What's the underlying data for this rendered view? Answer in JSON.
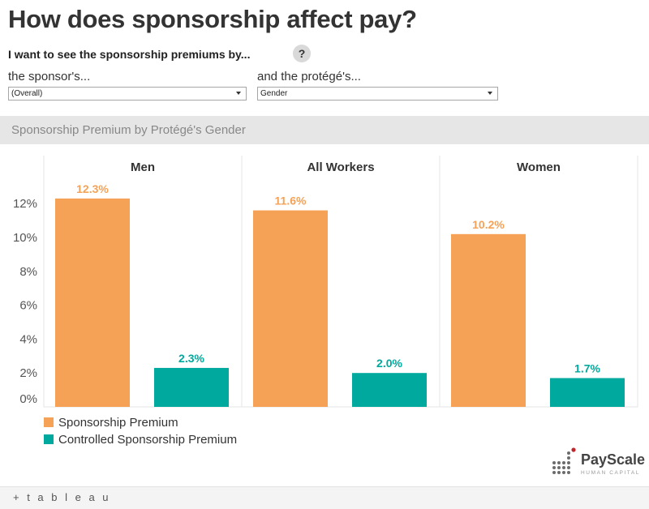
{
  "header": {
    "title": "How does sponsorship affect pay?",
    "prompt": "I want to see the sponsorship premiums by...",
    "help": "?"
  },
  "filters": {
    "sponsor_label": "the sponsor's...",
    "sponsor_value": "(Overall)",
    "protege_label": "and the protégé's...",
    "protege_value": "Gender"
  },
  "section": {
    "title": "Sponsorship Premium by Protégé's Gender"
  },
  "chart_data": {
    "type": "bar",
    "panels": [
      "Men",
      "All Workers",
      "Women"
    ],
    "series": [
      {
        "name": "Sponsorship Premium",
        "values": [
          12.3,
          11.6,
          10.2
        ],
        "labels": [
          "12.3%",
          "11.6%",
          "10.2%"
        ],
        "color": "#f5a256"
      },
      {
        "name": "Controlled Sponsorship Premium",
        "values": [
          2.3,
          2.0,
          1.7
        ],
        "labels": [
          "2.3%",
          "2.0%",
          "1.7%"
        ],
        "color": "#00a99d"
      }
    ],
    "yticks": [
      {
        "value": 0,
        "label": "0%"
      },
      {
        "value": 2,
        "label": "2%"
      },
      {
        "value": 4,
        "label": "4%"
      },
      {
        "value": 6,
        "label": "6%"
      },
      {
        "value": 8,
        "label": "8%"
      },
      {
        "value": 10,
        "label": "10%"
      },
      {
        "value": 12,
        "label": "12%"
      }
    ],
    "ylim": [
      0,
      14
    ],
    "legend_position": "bottom-left",
    "grid": false
  },
  "branding": {
    "logo_name": "PayScale",
    "logo_sub": "HUMAN CAPITAL",
    "footer": "+ t a b l e a u"
  }
}
